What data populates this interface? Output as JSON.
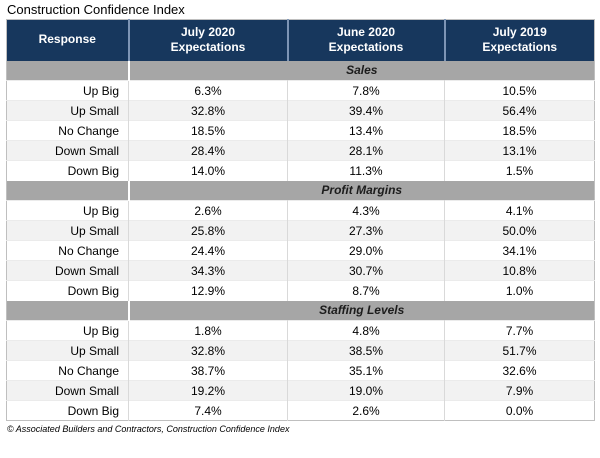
{
  "title": "Construction Confidence Index",
  "source_note": "© Associated Builders and Contractors, Construction Confidence Index",
  "colors": {
    "header_bg": "#17375D",
    "header_divider": "#7E95B5",
    "band_bg": "#A6A6A6",
    "alt_row_bg": "#F2F2F2",
    "cell_divider": "#D9D9D9",
    "outer_border": "#BFBFBF"
  },
  "table": {
    "headers": [
      "Response",
      "July 2020\nExpectations",
      "June 2020\nExpectations",
      "July 2019\nExpectations"
    ],
    "sections": [
      {
        "name": "Sales",
        "rows": [
          {
            "label": "Up Big",
            "values": [
              "6.3%",
              "7.8%",
              "10.5%"
            ]
          },
          {
            "label": "Up Small",
            "values": [
              "32.8%",
              "39.4%",
              "56.4%"
            ]
          },
          {
            "label": "No Change",
            "values": [
              "18.5%",
              "13.4%",
              "18.5%"
            ]
          },
          {
            "label": "Down Small",
            "values": [
              "28.4%",
              "28.1%",
              "13.1%"
            ]
          },
          {
            "label": "Down Big",
            "values": [
              "14.0%",
              "11.3%",
              "1.5%"
            ]
          }
        ]
      },
      {
        "name": "Profit Margins",
        "rows": [
          {
            "label": "Up Big",
            "values": [
              "2.6%",
              "4.3%",
              "4.1%"
            ]
          },
          {
            "label": "Up Small",
            "values": [
              "25.8%",
              "27.3%",
              "50.0%"
            ]
          },
          {
            "label": "No Change",
            "values": [
              "24.4%",
              "29.0%",
              "34.1%"
            ]
          },
          {
            "label": "Down Small",
            "values": [
              "34.3%",
              "30.7%",
              "10.8%"
            ]
          },
          {
            "label": "Down Big",
            "values": [
              "12.9%",
              "8.7%",
              "1.0%"
            ]
          }
        ]
      },
      {
        "name": "Staffing Levels",
        "rows": [
          {
            "label": "Up Big",
            "values": [
              "1.8%",
              "4.8%",
              "7.7%"
            ]
          },
          {
            "label": "Up Small",
            "values": [
              "32.8%",
              "38.5%",
              "51.7%"
            ]
          },
          {
            "label": "No Change",
            "values": [
              "38.7%",
              "35.1%",
              "32.6%"
            ]
          },
          {
            "label": "Down Small",
            "values": [
              "19.2%",
              "19.0%",
              "7.9%"
            ]
          },
          {
            "label": "Down Big",
            "values": [
              "7.4%",
              "2.6%",
              "0.0%"
            ]
          }
        ]
      }
    ]
  },
  "chart_data": {
    "type": "table",
    "title": "Construction Confidence Index",
    "columns": [
      "Response",
      "July 2020 Expectations",
      "June 2020 Expectations",
      "July 2019 Expectations"
    ],
    "units": "percent",
    "sections": [
      {
        "name": "Sales",
        "categories": [
          "Up Big",
          "Up Small",
          "No Change",
          "Down Small",
          "Down Big"
        ],
        "series": [
          {
            "name": "July 2020 Expectations",
            "values": [
              6.3,
              32.8,
              18.5,
              28.4,
              14.0
            ]
          },
          {
            "name": "June 2020 Expectations",
            "values": [
              7.8,
              39.4,
              13.4,
              28.1,
              11.3
            ]
          },
          {
            "name": "July 2019 Expectations",
            "values": [
              10.5,
              56.4,
              18.5,
              13.1,
              1.5
            ]
          }
        ]
      },
      {
        "name": "Profit Margins",
        "categories": [
          "Up Big",
          "Up Small",
          "No Change",
          "Down Small",
          "Down Big"
        ],
        "series": [
          {
            "name": "July 2020 Expectations",
            "values": [
              2.6,
              25.8,
              24.4,
              34.3,
              12.9
            ]
          },
          {
            "name": "June 2020 Expectations",
            "values": [
              4.3,
              27.3,
              29.0,
              30.7,
              8.7
            ]
          },
          {
            "name": "July 2019 Expectations",
            "values": [
              4.1,
              50.0,
              34.1,
              10.8,
              1.0
            ]
          }
        ]
      },
      {
        "name": "Staffing Levels",
        "categories": [
          "Up Big",
          "Up Small",
          "No Change",
          "Down Small",
          "Down Big"
        ],
        "series": [
          {
            "name": "July 2020 Expectations",
            "values": [
              1.8,
              32.8,
              38.7,
              19.2,
              7.4
            ]
          },
          {
            "name": "June 2020 Expectations",
            "values": [
              4.8,
              38.5,
              35.1,
              19.0,
              2.6
            ]
          },
          {
            "name": "July 2019 Expectations",
            "values": [
              7.7,
              51.7,
              32.6,
              7.9,
              0.0
            ]
          }
        ]
      }
    ],
    "source": "© Associated Builders and Contractors, Construction Confidence Index"
  }
}
